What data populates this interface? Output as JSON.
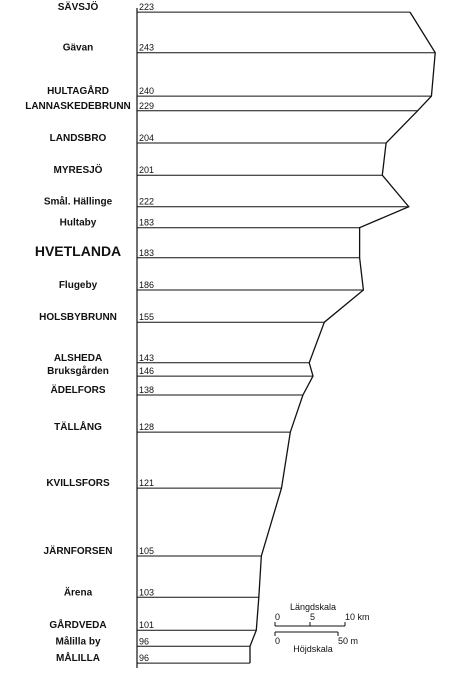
{
  "chart_data": {
    "type": "profile",
    "categories": [
      "SÄVSJÖ",
      "Gävan",
      "HULTAGÅRD",
      "LANNASKEDEBRUNN",
      "LANDSBRO",
      "MYRESJÖ",
      "Smål. Hällinge",
      "Hultaby",
      "HVETLANDA",
      "Flugeby",
      "HOLSBYBRUNN",
      "ALSHEDA",
      "Bruksgården",
      "ÄDELFORS",
      "TÄLLÅNG",
      "KVILLSFORS",
      "JÄRNFORSEN",
      "Ärena",
      "GÅRDVEDA",
      "Målilla by",
      "MÅLILLA"
    ],
    "x": [
      0.3,
      6.1,
      12.3,
      14.4,
      19,
      23.6,
      28.1,
      31.1,
      35.4,
      40,
      44.6,
      50.4,
      52.3,
      55,
      60.3,
      68.3,
      78,
      83.9,
      88.6,
      90.9,
      93.3
    ],
    "values": [
      223,
      243,
      240,
      229,
      204,
      201,
      222,
      183,
      183,
      186,
      155,
      143,
      146,
      138,
      128,
      121,
      105,
      103,
      101,
      96,
      96
    ],
    "color": "#111111",
    "length_scale": {
      "label": "Längdskala",
      "ticks": [
        0,
        5,
        {
          "value": 10,
          "label": "10 km"
        }
      ]
    },
    "height_scale": {
      "label": "Höjdskala",
      "ticks": [
        0,
        {
          "value": 50,
          "label": "50 m"
        }
      ]
    }
  }
}
